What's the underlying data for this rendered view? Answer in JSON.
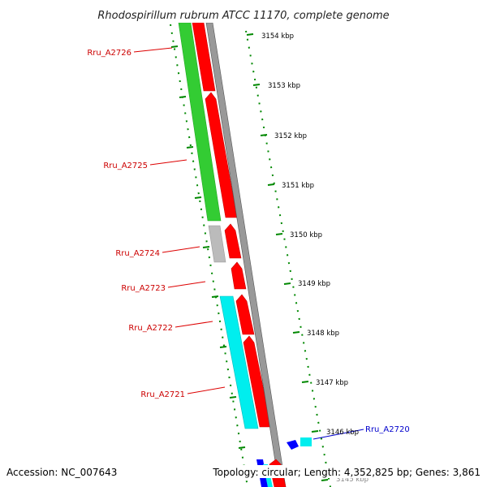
{
  "header": {
    "title": "Rhodospirillum rubrum ATCC 11170, complete genome"
  },
  "footer": {
    "accession": "Accession: NC_007643",
    "summary": "Topology: circular; Length: 4,352,825 bp; Genes: 3,861"
  },
  "ruler": {
    "ticks": [
      "3154 kbp",
      "3153 kbp",
      "3152 kbp",
      "3151 kbp",
      "3150 kbp",
      "3149 kbp",
      "3148 kbp",
      "3147 kbp",
      "3146 kbp",
      "3145 kbp"
    ]
  },
  "genes": [
    {
      "label": "Rru_A2726",
      "color": "#d00000"
    },
    {
      "label": "Rru_A2725",
      "color": "#d00000"
    },
    {
      "label": "Rru_A2724",
      "color": "#d00000"
    },
    {
      "label": "Rru_A2723",
      "color": "#d00000"
    },
    {
      "label": "Rru_A2722",
      "color": "#d00000"
    },
    {
      "label": "Rru_A2721",
      "color": "#d00000"
    },
    {
      "label": "Rru_A2720",
      "color": "#0000cc"
    }
  ],
  "colors": {
    "cds_forward": "#ff0000",
    "cog_green": "#33cc33",
    "cog_gray": "#bbbbbb",
    "cog_cyan": "#00eeee",
    "cog_blue": "#0000ff",
    "backbone": "#888888",
    "tick_green": "#008800"
  }
}
